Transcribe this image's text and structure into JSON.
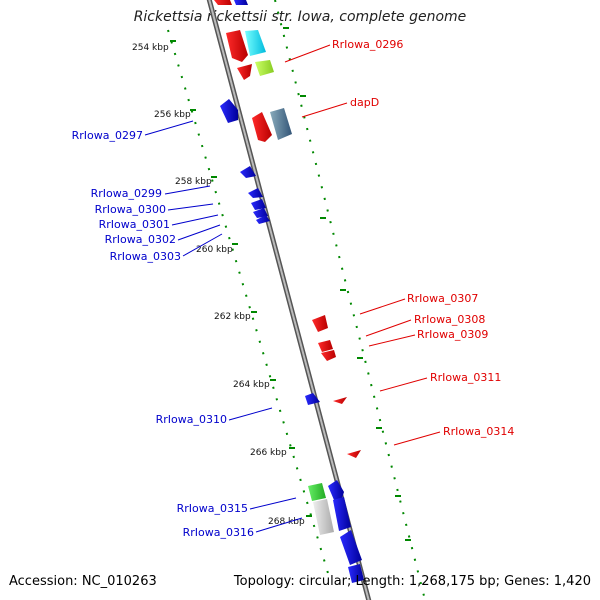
{
  "title": "Rickettsia rickettsii str. Iowa, complete genome",
  "footer": {
    "accession": "Accession: NC_010263",
    "summary": "Topology: circular; Length: 1,268,175 bp; Genes: 1,420"
  },
  "colors": {
    "forward": "#e00000",
    "reverse": "#0000cc",
    "backbone": "#888888",
    "tick_dots": "#008800"
  },
  "ticks": [
    "254 kbp",
    "256 kbp",
    "258 kbp",
    "260 kbp",
    "262 kbp",
    "264 kbp",
    "266 kbp",
    "268 kbp"
  ],
  "labels_forward": [
    "RrIowa_0296",
    "dapD",
    "RrIowa_0307",
    "RrIowa_0308",
    "RrIowa_0309",
    "RrIowa_0311",
    "RrIowa_0314"
  ],
  "labels_reverse": [
    "RrIowa_0297",
    "RrIowa_0299",
    "RrIowa_0300",
    "RrIowa_0301",
    "RrIowa_0302",
    "RrIowa_0303",
    "RrIowa_0310",
    "RrIowa_0315",
    "RrIowa_0316"
  ]
}
